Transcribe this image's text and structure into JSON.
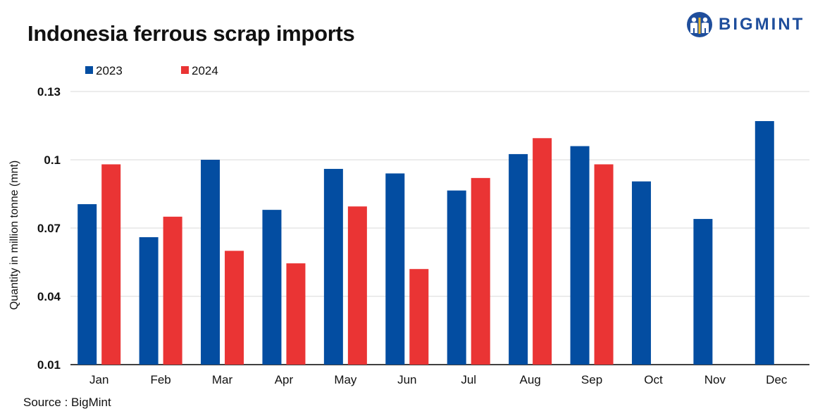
{
  "title": "Indonesia ferrous scrap imports",
  "logo_text": "BIGMINT",
  "source": "Source : BigMint",
  "colors": {
    "series_2023": "#034da1",
    "series_2024": "#ea3434",
    "grid": "#d9d9d9",
    "axis": "#000000"
  },
  "chart_data": {
    "type": "bar",
    "title": "Indonesia ferrous scrap imports",
    "xlabel": "",
    "ylabel": "Quantity in million tonne (mnt)",
    "ylim": [
      0.01,
      0.13
    ],
    "yticks": [
      0.01,
      0.04,
      0.07,
      0.1,
      0.13
    ],
    "ytick_labels": [
      "0.01",
      "0.04",
      "0.07",
      "0.1",
      "0.13"
    ],
    "grid": true,
    "legend_position": "top-left",
    "categories": [
      "Jan",
      "Feb",
      "Mar",
      "Apr",
      "May",
      "Jun",
      "Jul",
      "Aug",
      "Sep",
      "Oct",
      "Nov",
      "Dec"
    ],
    "series": [
      {
        "name": "2023",
        "color": "#034da1",
        "values": [
          0.0805,
          0.066,
          0.1,
          0.078,
          0.096,
          0.094,
          0.0865,
          0.1025,
          0.106,
          0.0905,
          0.074,
          0.117
        ]
      },
      {
        "name": "2024",
        "color": "#ea3434",
        "values": [
          0.098,
          0.075,
          0.06,
          0.0545,
          0.0795,
          0.052,
          0.092,
          0.1095,
          0.098,
          null,
          null,
          null
        ]
      }
    ]
  }
}
